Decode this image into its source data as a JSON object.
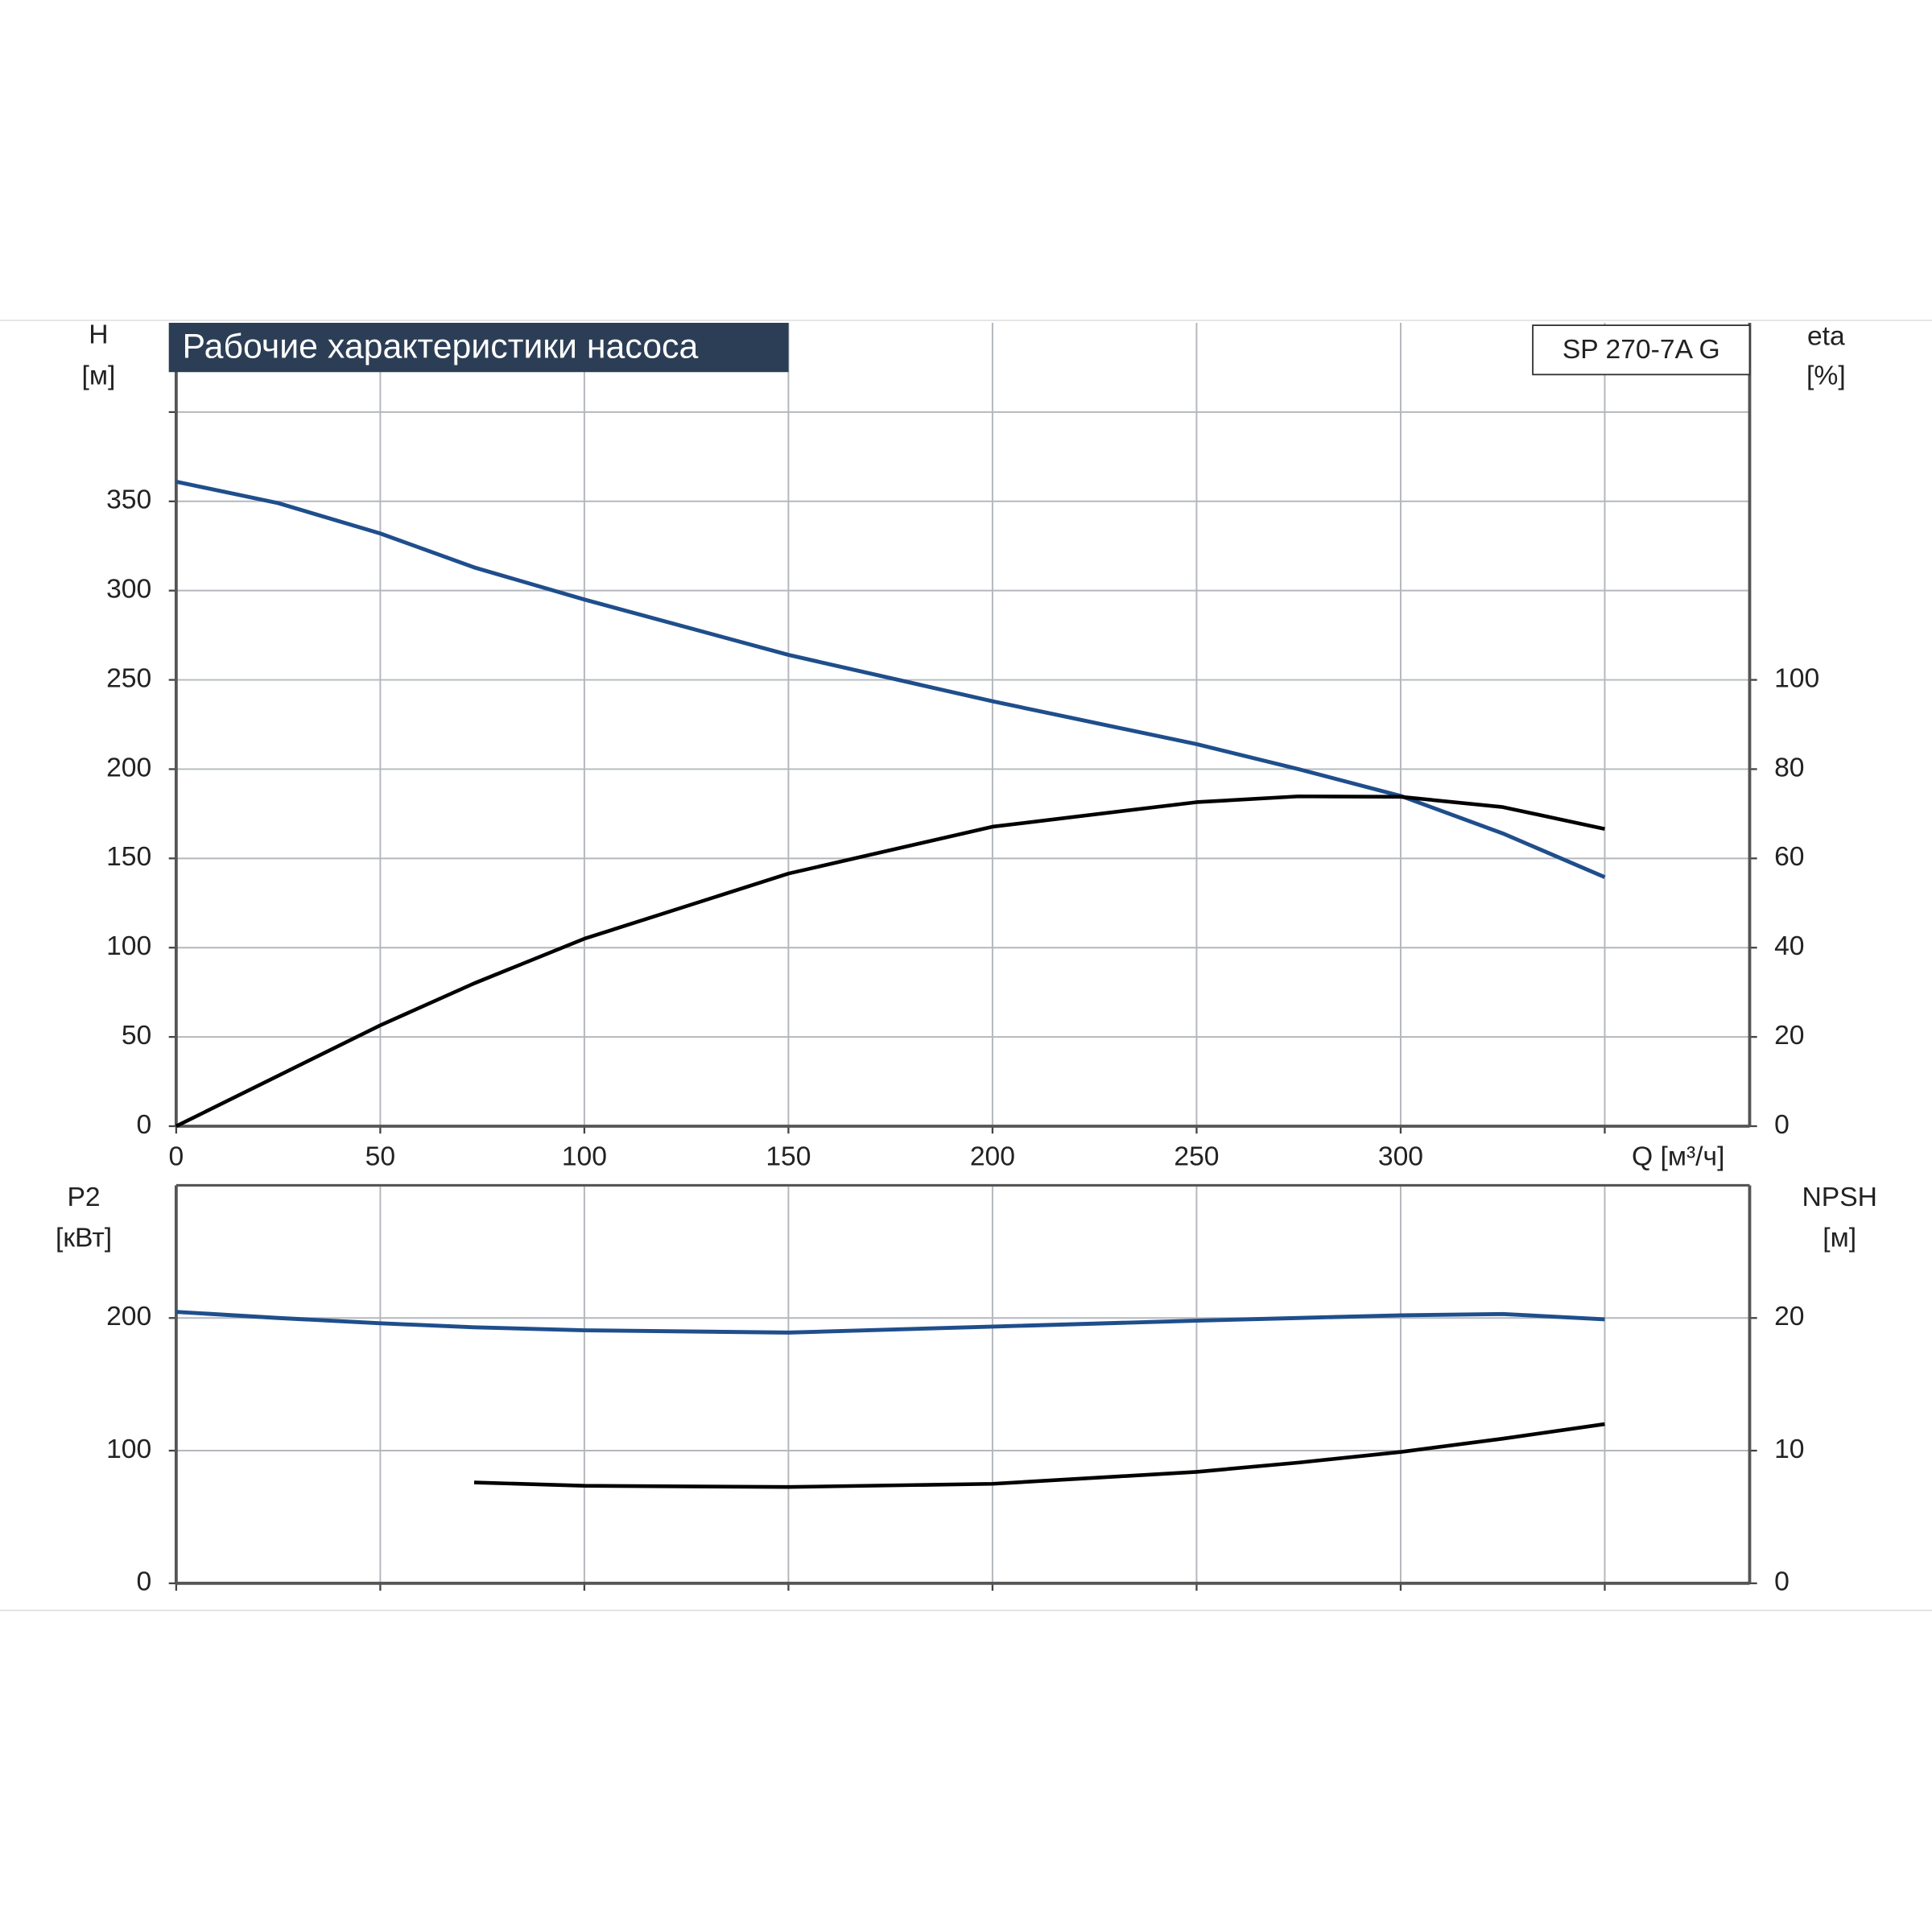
{
  "chart_data": [
    {
      "type": "line",
      "title": "Рабочие характеристики насоса",
      "annotation": "SP 270-7A G",
      "ylabel": [
        "H",
        "[м]"
      ],
      "y2label": [
        "eta",
        "[%]"
      ],
      "xlabel": "Q [м³/ч]",
      "x": [
        0,
        25,
        50,
        73,
        100,
        150,
        200,
        250,
        275,
        300,
        325,
        350
      ],
      "series": [
        {
          "name": "H",
          "color": "#1f4e8c",
          "values": [
            361,
            349,
            332,
            313,
            295,
            264,
            238,
            214,
            200,
            185,
            164,
            139.5
          ]
        },
        {
          "name": "eta",
          "color": "#000000",
          "axis": "y2",
          "values": [
            0,
            11.3,
            22.6,
            32,
            42,
            56.6,
            67.1,
            72.6,
            73.9,
            73.8,
            71.5,
            66.6
          ]
        }
      ],
      "xlim": [
        0,
        385.5
      ],
      "xticks": [
        0,
        50,
        100,
        150,
        200,
        250,
        300,
        {
          "value": 350,
          "label": null
        }
      ],
      "ylim": [
        0,
        450
      ],
      "yticks": [
        0,
        50,
        100,
        150,
        200,
        250,
        300,
        350,
        {
          "value": 400,
          "label": null
        }
      ],
      "y2lim": [
        0,
        180
      ],
      "y2ticks": [
        0,
        20,
        40,
        60,
        80,
        100
      ],
      "grid": true
    },
    {
      "type": "line",
      "ylabel": [
        "P2",
        "[кВт]"
      ],
      "y2label": [
        "NPSH",
        "[м]"
      ],
      "x": [
        0,
        25,
        50,
        73,
        100,
        150,
        200,
        250,
        275,
        300,
        325,
        350
      ],
      "series": [
        {
          "name": "P2",
          "color": "#1f4e8c",
          "values": [
            204.6,
            200,
            196,
            193,
            190.7,
            189,
            193.5,
            198,
            200,
            202,
            203,
            199
          ]
        },
        {
          "name": "NPSH",
          "color": "#000000",
          "axis": "y2",
          "values": [
            null,
            null,
            null,
            7.6,
            7.35,
            7.26,
            7.5,
            8.4,
            9.1,
            9.9,
            10.9,
            12.0
          ]
        }
      ],
      "xlim": [
        0,
        385.5
      ],
      "xticks": [
        {
          "value": 0,
          "label": null
        },
        {
          "value": 50,
          "label": null
        },
        {
          "value": 100,
          "label": null
        },
        {
          "value": 150,
          "label": null
        },
        {
          "value": 200,
          "label": null
        },
        {
          "value": 250,
          "label": null
        },
        {
          "value": 300,
          "label": null
        },
        {
          "value": 350,
          "label": null
        }
      ],
      "ylim": [
        0,
        300
      ],
      "yticks": [
        0,
        100,
        200
      ],
      "y2lim": [
        0,
        30
      ],
      "y2ticks": [
        0,
        10,
        20
      ],
      "grid": true
    }
  ]
}
